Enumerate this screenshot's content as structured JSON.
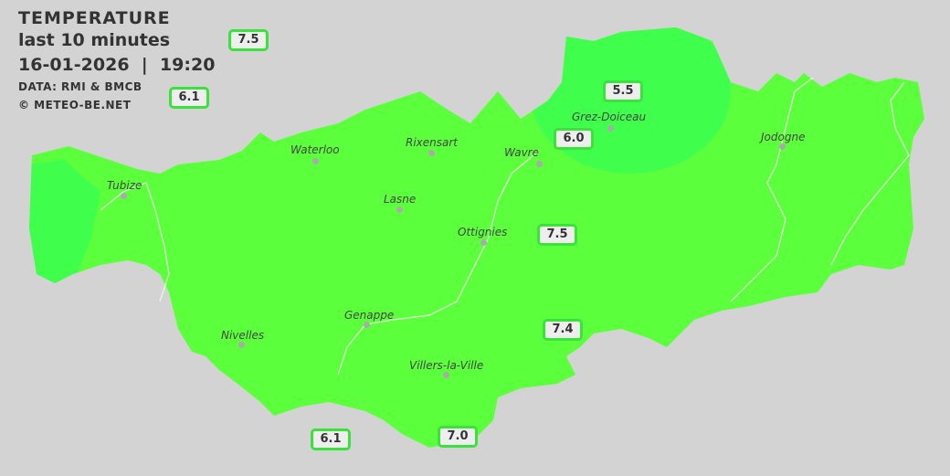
{
  "header": {
    "title": "TEMPERATURE",
    "subtitle": "last 10 minutes",
    "datetime": "16-01-2026  |  19:20",
    "source": "DATA: RMI & BMCB",
    "copyright": "© METEO-BE.NET"
  },
  "colors": {
    "background": "#d3d3d3",
    "fill_main": "#5cff3c",
    "fill_cool": "#3fff4c",
    "border": "#3be23b"
  },
  "towns": [
    {
      "name": "Waterloo"
    },
    {
      "name": "Rixensart"
    },
    {
      "name": "Wavre"
    },
    {
      "name": "Grez-Doiceau"
    },
    {
      "name": "Jodogne"
    },
    {
      "name": "Tubize"
    },
    {
      "name": "Lasne"
    },
    {
      "name": "Ottignies"
    },
    {
      "name": "Genappe"
    },
    {
      "name": "Nivelles"
    },
    {
      "name": "Villers-la-Ville"
    }
  ],
  "readings": [
    {
      "value": "7.5"
    },
    {
      "value": "6.1"
    },
    {
      "value": "5.5"
    },
    {
      "value": "6.0"
    },
    {
      "value": "7.5"
    },
    {
      "value": "7.4"
    },
    {
      "value": "6.1"
    },
    {
      "value": "7.0"
    }
  ]
}
